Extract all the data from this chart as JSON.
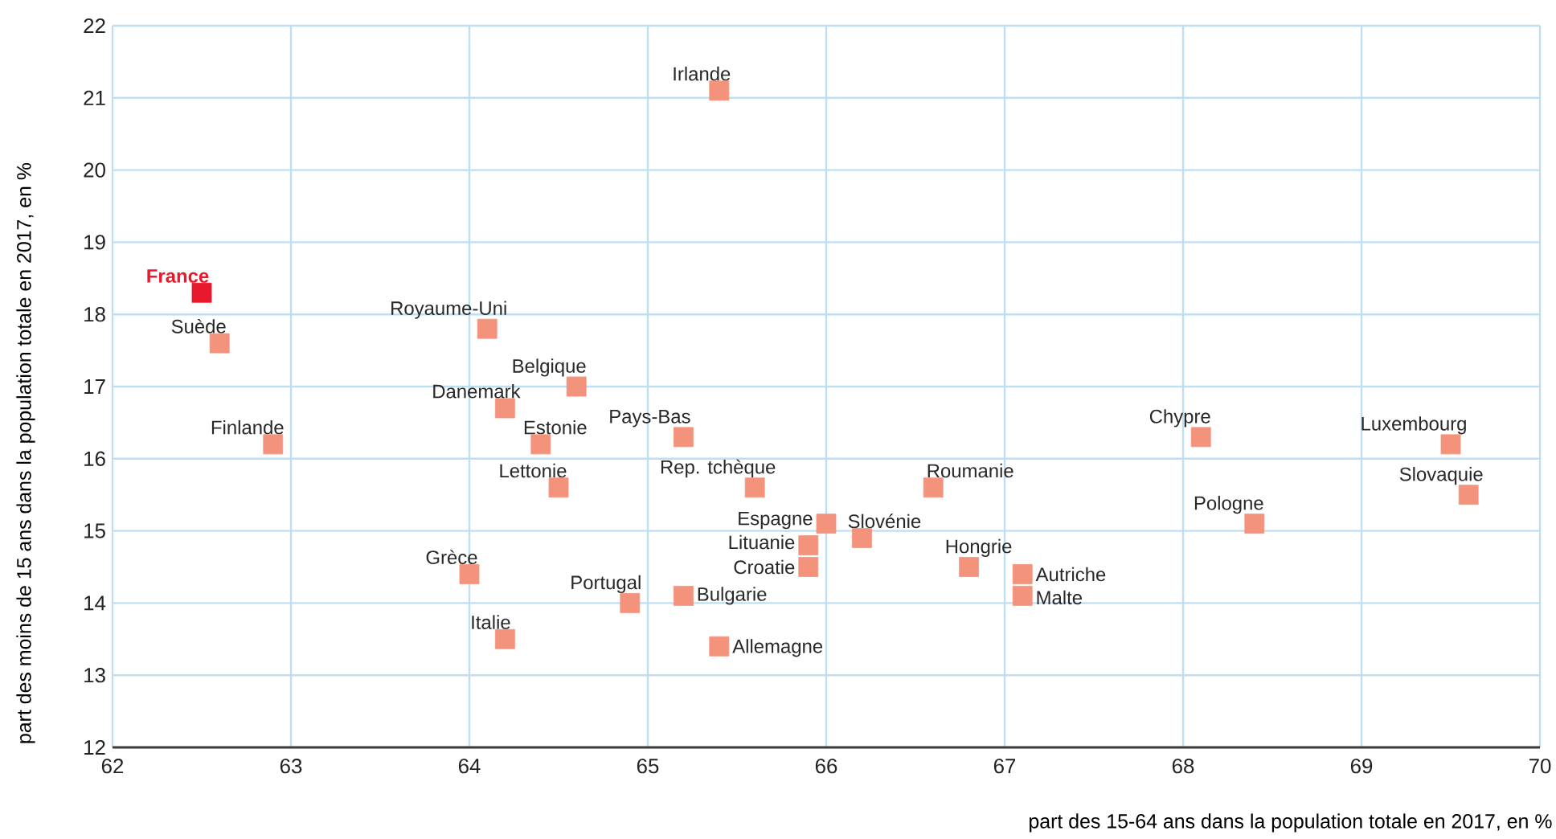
{
  "chart_data": {
    "type": "scatter",
    "xlabel": "part des 15-64 ans dans la population totale en 2017, en %",
    "ylabel": "part des moins de 15 ans dans la population totale en 2017, en %",
    "x": [
      62.5,
      62.6,
      62.9,
      64.1,
      64.6,
      64.2,
      64.4,
      64.5,
      65.2,
      65.4,
      65.6,
      66.6,
      66.0,
      66.2,
      65.9,
      65.9,
      66.8,
      67.1,
      67.1,
      64.0,
      64.9,
      65.2,
      64.2,
      65.4,
      68.1,
      68.4,
      69.5,
      69.6
    ],
    "values": [
      18.3,
      17.6,
      16.2,
      17.8,
      17.0,
      16.7,
      16.2,
      15.6,
      16.3,
      21.1,
      15.6,
      15.6,
      15.1,
      14.9,
      14.8,
      14.5,
      14.5,
      14.4,
      14.1,
      14.4,
      14.0,
      14.1,
      13.5,
      13.4,
      16.3,
      15.1,
      16.2,
      15.5
    ],
    "colors": [
      "#e8192c",
      "#f4937c",
      "#f4937c",
      "#f4937c",
      "#f4937c",
      "#f4937c",
      "#f4937c",
      "#f4937c",
      "#f4937c",
      "#f4937c",
      "#f4937c",
      "#f4937c",
      "#f4937c",
      "#f4937c",
      "#f4937c",
      "#f4937c",
      "#f4937c",
      "#f4937c",
      "#f4937c",
      "#f4937c",
      "#f4937c",
      "#f4937c",
      "#f4937c",
      "#f4937c",
      "#f4937c",
      "#f4937c",
      "#f4937c",
      "#f4937c"
    ],
    "annotations": [
      {
        "text": "France",
        "x": 62.5,
        "y": 18.3
      },
      {
        "text": "Suède",
        "x": 62.6,
        "y": 17.6
      },
      {
        "text": "Finlande",
        "x": 62.9,
        "y": 16.2
      },
      {
        "text": "Royaume-Uni",
        "x": 64.1,
        "y": 17.8
      },
      {
        "text": "Belgique",
        "x": 64.6,
        "y": 17.0
      },
      {
        "text": "Danemark",
        "x": 64.2,
        "y": 16.7
      },
      {
        "text": "Estonie",
        "x": 64.4,
        "y": 16.2
      },
      {
        "text": "Lettonie",
        "x": 64.5,
        "y": 15.6
      },
      {
        "text": "Pays-Bas",
        "x": 65.2,
        "y": 16.3
      },
      {
        "text": "Irlande",
        "x": 65.4,
        "y": 21.1
      },
      {
        "text": "Rep. tchèque",
        "x": 65.6,
        "y": 15.6
      },
      {
        "text": "Roumanie",
        "x": 66.6,
        "y": 15.6
      },
      {
        "text": "Espagne",
        "x": 66.0,
        "y": 15.1
      },
      {
        "text": "Slovénie",
        "x": 66.2,
        "y": 14.9
      },
      {
        "text": "Lituanie",
        "x": 65.9,
        "y": 14.8
      },
      {
        "text": "Croatie",
        "x": 65.9,
        "y": 14.5
      },
      {
        "text": "Hongrie",
        "x": 66.8,
        "y": 14.5
      },
      {
        "text": "Autriche",
        "x": 67.1,
        "y": 14.4
      },
      {
        "text": "Malte",
        "x": 67.1,
        "y": 14.1
      },
      {
        "text": "Grèce",
        "x": 64.0,
        "y": 14.4
      },
      {
        "text": "Portugal",
        "x": 64.9,
        "y": 14.0
      },
      {
        "text": "Bulgarie",
        "x": 65.2,
        "y": 14.1
      },
      {
        "text": "Italie",
        "x": 64.2,
        "y": 13.5
      },
      {
        "text": "Allemagne",
        "x": 65.4,
        "y": 13.4
      },
      {
        "text": "Chypre",
        "x": 68.1,
        "y": 16.3
      },
      {
        "text": "Pologne",
        "x": 68.4,
        "y": 15.1
      },
      {
        "text": "Luxembourg",
        "x": 69.5,
        "y": 16.2
      },
      {
        "text": "Slovaquie",
        "x": 69.6,
        "y": 15.5
      }
    ],
    "xlim": [
      62,
      70
    ],
    "ylim": [
      12,
      22
    ],
    "xticks": [
      62,
      63,
      64,
      65,
      66,
      67,
      68,
      69,
      70
    ],
    "yticks": [
      12,
      13,
      14,
      15,
      16,
      17,
      18,
      19,
      20,
      21,
      22
    ],
    "grid": true,
    "marker": "square"
  }
}
